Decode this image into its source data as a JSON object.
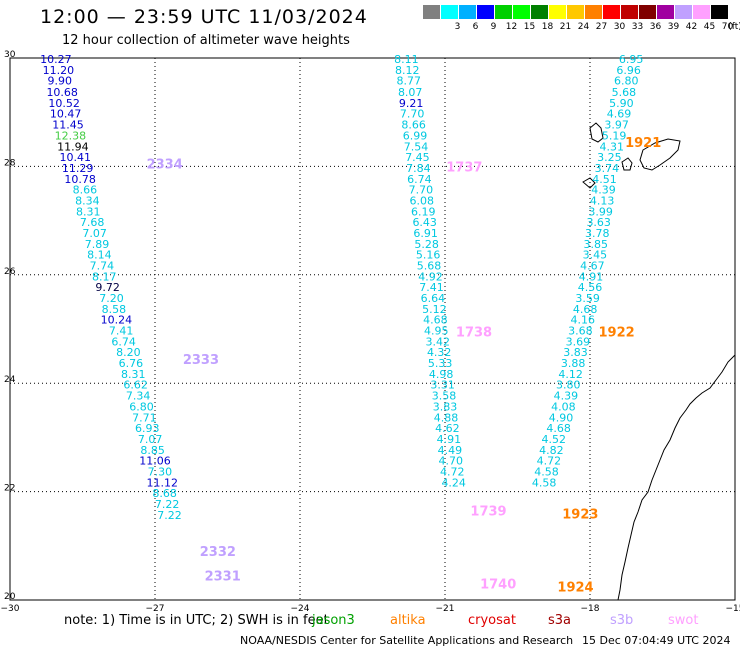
{
  "header": {
    "title": "12:00 — 23:59 UTC 11/03/2024",
    "subtitle": "12 hour collection of altimeter wave heights"
  },
  "colorbar": {
    "unit": "(ft)",
    "colors": [
      "#808080",
      "#00ffff",
      "#00b0ff",
      "#0000ff",
      "#00d000",
      "#00ff00",
      "#008000",
      "#ffff00",
      "#ffc800",
      "#ff8000",
      "#ff0000",
      "#c00000",
      "#800000",
      "#a000a0",
      "#c0a0ff",
      "#ffa0ff",
      "#000000"
    ],
    "labels": [
      "",
      "3",
      "6",
      "9",
      "12",
      "15",
      "18",
      "21",
      "24",
      "27",
      "30",
      "33",
      "36",
      "39",
      "42",
      "45",
      "70"
    ]
  },
  "axes": {
    "x_ticks": [
      "−30",
      "−27",
      "−24",
      "−21",
      "−18",
      "−15"
    ],
    "y_ticks": [
      "30",
      "28",
      "26",
      "24",
      "22",
      "20"
    ],
    "x_range": [
      -30,
      -15
    ],
    "y_range": [
      20,
      30
    ]
  },
  "legend": {
    "note": "note: 1) Time is in UTC; 2) SWH is in feet",
    "satellites": [
      {
        "name": "jason3",
        "color": "#00a000"
      },
      {
        "name": "altika",
        "color": "#ff8000"
      },
      {
        "name": "cryosat",
        "color": "#e00000"
      },
      {
        "name": "s3a",
        "color": "#a00000"
      },
      {
        "name": "s3b",
        "color": "#c0a0ff"
      },
      {
        "name": "swot",
        "color": "#ffa0ff"
      }
    ]
  },
  "footer": {
    "credit": "NOAA/NESDIS Center for Satellite Applications and Research",
    "timestamp": "15 Dec 07:04:49 UTC 2024"
  },
  "tracks": [
    {
      "pass": "2334",
      "pass_color": "#c0a0ff",
      "pass_pos": [
        -26.8,
        28.05
      ],
      "points": [
        [
          -29.05,
          30.0,
          "10.27",
          "#0000cc"
        ],
        [
          -29.0,
          29.8,
          "11.20",
          "#0000cc"
        ],
        [
          -28.97,
          29.6,
          "9.90",
          "#0000cc"
        ],
        [
          -28.92,
          29.39,
          "10.68",
          "#0000cc"
        ],
        [
          -28.88,
          29.19,
          "10.52",
          "#0000cc"
        ],
        [
          -28.85,
          28.99,
          "10.47",
          "#0000cc"
        ],
        [
          -28.8,
          28.79,
          "11.45",
          "#0000cc"
        ],
        [
          -28.75,
          28.59,
          "12.38",
          "#44cc44"
        ],
        [
          -28.7,
          28.39,
          "11.94",
          "#000000"
        ],
        [
          -28.65,
          28.19,
          "10.41",
          "#0000cc"
        ],
        [
          -28.6,
          27.99,
          "11.29",
          "#0000cc"
        ],
        [
          -28.55,
          27.79,
          "10.78",
          "#0000cc"
        ],
        [
          -28.45,
          27.59,
          "8.66",
          "#00c8e0"
        ],
        [
          -28.4,
          27.39,
          "8.34",
          "#00c8e0"
        ],
        [
          -28.38,
          27.19,
          "8.31",
          "#00c8e0"
        ],
        [
          -28.3,
          26.99,
          "7.68",
          "#00c8e0"
        ],
        [
          -28.25,
          26.79,
          "7.07",
          "#00c8e0"
        ],
        [
          -28.2,
          26.59,
          "7.89",
          "#00c8e0"
        ],
        [
          -28.15,
          26.39,
          "8.14",
          "#00c8e0"
        ],
        [
          -28.1,
          26.19,
          "7.74",
          "#00c8e0"
        ],
        [
          -28.05,
          25.99,
          "8.17",
          "#00c8e0"
        ],
        [
          -27.98,
          25.79,
          "9.72",
          "#000044"
        ]
      ]
    },
    {
      "pass": "2333",
      "pass_color": "#c0a0ff",
      "pass_pos": [
        -26.05,
        24.45
      ],
      "points": [
        [
          -27.9,
          25.59,
          "7.20",
          "#00c8e0"
        ],
        [
          -27.85,
          25.39,
          "8.58",
          "#00c8e0"
        ],
        [
          -27.8,
          25.19,
          "10.24",
          "#0000cc"
        ],
        [
          -27.7,
          24.99,
          "7.41",
          "#00c8e0"
        ],
        [
          -27.65,
          24.79,
          "6.74",
          "#00c8e0"
        ],
        [
          -27.55,
          24.59,
          "8.20",
          "#00c8e0"
        ],
        [
          -27.5,
          24.39,
          "6.76",
          "#00c8e0"
        ],
        [
          -27.45,
          24.19,
          "8.31",
          "#00c8e0"
        ],
        [
          -27.4,
          23.99,
          "6.62",
          "#00c8e0"
        ],
        [
          -27.35,
          23.79,
          "7.34",
          "#00c8e0"
        ],
        [
          -27.28,
          23.59,
          "6.80",
          "#00c8e0"
        ],
        [
          -27.22,
          23.39,
          "7.71",
          "#00c8e0"
        ],
        [
          -27.16,
          23.19,
          "6.93",
          "#00c8e0"
        ],
        [
          -27.1,
          22.99,
          "7.07",
          "#00c8e0"
        ],
        [
          -27.05,
          22.79,
          "8.85",
          "#00c8e0"
        ],
        [
          -27.0,
          22.59,
          "11.06",
          "#0000cc"
        ]
      ]
    },
    {
      "pass": "2332",
      "pass_color": "#c0a0ff",
      "pass_pos": [
        -25.7,
        20.9
      ],
      "points": [
        [
          -26.9,
          22.39,
          "7.30",
          "#00c8e0"
        ],
        [
          -26.85,
          22.19,
          "11.12",
          "#0000cc"
        ],
        [
          -26.8,
          21.99,
          "8.68",
          "#00c8e0"
        ],
        [
          -26.75,
          21.79,
          "7.22",
          "#00c8e0"
        ],
        [
          -26.7,
          21.59,
          "7.22",
          "#00c8e0"
        ]
      ]
    },
    {
      "pass": "2331",
      "pass_color": "#c0a0ff",
      "pass_pos": [
        -25.6,
        20.45
      ],
      "points": []
    },
    {
      "pass": "1737",
      "pass_color": "#ffa0ff",
      "pass_pos": [
        -20.6,
        28.0
      ],
      "points": [
        [
          -21.8,
          30.0,
          "8.11",
          "#00c8e0"
        ],
        [
          -21.78,
          29.8,
          "8.12",
          "#00c8e0"
        ],
        [
          -21.75,
          29.6,
          "8.77",
          "#00c8e0"
        ],
        [
          -21.72,
          29.39,
          "8.07",
          "#00c8e0"
        ],
        [
          -21.7,
          29.19,
          "9.21",
          "#0000cc"
        ],
        [
          -21.68,
          28.99,
          "7.70",
          "#00c8e0"
        ],
        [
          -21.65,
          28.79,
          "8.66",
          "#00c8e0"
        ],
        [
          -21.62,
          28.59,
          "6.99",
          "#00c8e0"
        ],
        [
          -21.6,
          28.39,
          "7.54",
          "#00c8e0"
        ],
        [
          -21.57,
          28.19,
          "7.45",
          "#00c8e0"
        ],
        [
          -21.55,
          27.99,
          "7.84",
          "#00c8e0"
        ],
        [
          -21.53,
          27.79,
          "6.74",
          "#00c8e0"
        ],
        [
          -21.5,
          27.59,
          "7.70",
          "#00c8e0"
        ],
        [
          -21.48,
          27.39,
          "6.08",
          "#00c8e0"
        ],
        [
          -21.45,
          27.19,
          "6.19",
          "#00c8e0"
        ],
        [
          -21.42,
          26.99,
          "6.43",
          "#00c8e0"
        ]
      ]
    },
    {
      "pass": "1738",
      "pass_color": "#ffa0ff",
      "pass_pos": [
        -20.4,
        24.95
      ],
      "points": [
        [
          -21.4,
          26.79,
          "6.91",
          "#00c8e0"
        ],
        [
          -21.38,
          26.59,
          "5.28",
          "#00c8e0"
        ],
        [
          -21.35,
          26.39,
          "5.16",
          "#00c8e0"
        ],
        [
          -21.33,
          26.19,
          "5.68",
          "#00c8e0"
        ],
        [
          -21.3,
          25.99,
          "4.92",
          "#00c8e0"
        ],
        [
          -21.28,
          25.79,
          "7.41",
          "#00c8e0"
        ],
        [
          -21.25,
          25.59,
          "6.64",
          "#00c8e0"
        ],
        [
          -21.22,
          25.39,
          "5.12",
          "#00c8e0"
        ],
        [
          -21.2,
          25.19,
          "4.68",
          "#00c8e0"
        ],
        [
          -21.18,
          24.99,
          "4.95",
          "#00c8e0"
        ],
        [
          -21.15,
          24.79,
          "3.42",
          "#00c8e0"
        ],
        [
          -21.12,
          24.59,
          "4.32",
          "#00c8e0"
        ],
        [
          -21.1,
          24.39,
          "5.33",
          "#00c8e0"
        ],
        [
          -21.08,
          24.19,
          "4.98",
          "#00c8e0"
        ],
        [
          -21.05,
          23.99,
          "3.31",
          "#00c8e0"
        ],
        [
          -21.02,
          23.79,
          "3.58",
          "#00c8e0"
        ]
      ]
    },
    {
      "pass": "1739",
      "pass_color": "#ffa0ff",
      "pass_pos": [
        -20.1,
        21.65
      ],
      "points": [
        [
          -21.0,
          23.59,
          "3.83",
          "#00c8e0"
        ],
        [
          -20.98,
          23.39,
          "4.88",
          "#00c8e0"
        ],
        [
          -20.95,
          23.19,
          "4.62",
          "#00c8e0"
        ],
        [
          -20.92,
          22.99,
          "4.91",
          "#00c8e0"
        ],
        [
          -20.9,
          22.79,
          "4.49",
          "#00c8e0"
        ],
        [
          -20.88,
          22.59,
          "4.70",
          "#00c8e0"
        ],
        [
          -20.85,
          22.39,
          "4.72",
          "#00c8e0"
        ],
        [
          -20.82,
          22.19,
          "4.24",
          "#00c8e0"
        ]
      ]
    },
    {
      "pass": "1740",
      "pass_color": "#ffa0ff",
      "pass_pos": [
        -19.9,
        20.3
      ],
      "points": []
    },
    {
      "pass": "1921",
      "pass_color": "#ff8000",
      "pass_pos": [
        -16.9,
        28.45
      ],
      "points": [
        [
          -17.15,
          30.0,
          "6.95",
          "#00c8e0"
        ],
        [
          -17.2,
          29.8,
          "6.96",
          "#00c8e0"
        ],
        [
          -17.25,
          29.6,
          "6.80",
          "#00c8e0"
        ],
        [
          -17.3,
          29.39,
          "5.68",
          "#00c8e0"
        ],
        [
          -17.35,
          29.19,
          "5.90",
          "#00c8e0"
        ],
        [
          -17.4,
          28.99,
          "4.69",
          "#00c8e0"
        ],
        [
          -17.45,
          28.79,
          "3.97",
          "#00c8e0"
        ],
        [
          -17.5,
          28.59,
          "5.19",
          "#00c8e0"
        ],
        [
          -17.55,
          28.39,
          "4.31",
          "#00c8e0"
        ],
        [
          -17.6,
          28.19,
          "3.25",
          "#00c8e0"
        ],
        [
          -17.65,
          27.99,
          "3.74",
          "#00c8e0"
        ],
        [
          -17.7,
          27.79,
          "4.51",
          "#00c8e0"
        ],
        [
          -17.72,
          27.59,
          "4.39",
          "#00c8e0"
        ],
        [
          -17.75,
          27.39,
          "4.13",
          "#00c8e0"
        ],
        [
          -17.78,
          27.19,
          "3.99",
          "#00c8e0"
        ],
        [
          -17.82,
          26.99,
          "3.63",
          "#00c8e0"
        ]
      ]
    },
    {
      "pass": "1922",
      "pass_color": "#ff8000",
      "pass_pos": [
        -17.45,
        24.95
      ],
      "points": [
        [
          -17.85,
          26.79,
          "3.78",
          "#00c8e0"
        ],
        [
          -17.88,
          26.59,
          "3.85",
          "#00c8e0"
        ],
        [
          -17.9,
          26.39,
          "3.45",
          "#00c8e0"
        ],
        [
          -17.95,
          26.19,
          "4.67",
          "#00c8e0"
        ],
        [
          -17.98,
          25.99,
          "4.91",
          "#00c8e0"
        ],
        [
          -18.0,
          25.79,
          "4.56",
          "#00c8e0"
        ],
        [
          -18.05,
          25.59,
          "3.59",
          "#00c8e0"
        ],
        [
          -18.1,
          25.39,
          "4.68",
          "#00c8e0"
        ],
        [
          -18.15,
          25.19,
          "4.16",
          "#00c8e0"
        ],
        [
          -18.2,
          24.99,
          "3.68",
          "#00c8e0"
        ],
        [
          -18.25,
          24.79,
          "3.69",
          "#00c8e0"
        ],
        [
          -18.3,
          24.59,
          "3.83",
          "#00c8e0"
        ],
        [
          -18.35,
          24.39,
          "3.88",
          "#00c8e0"
        ],
        [
          -18.4,
          24.19,
          "4.12",
          "#00c8e0"
        ],
        [
          -18.45,
          23.99,
          "3.80",
          "#00c8e0"
        ],
        [
          -18.5,
          23.79,
          "4.39",
          "#00c8e0"
        ]
      ]
    },
    {
      "pass": "1923",
      "pass_color": "#ff8000",
      "pass_pos": [
        -18.2,
        21.6
      ],
      "points": [
        [
          -18.55,
          23.59,
          "4.08",
          "#00c8e0"
        ],
        [
          -18.6,
          23.39,
          "4.90",
          "#00c8e0"
        ],
        [
          -18.65,
          23.19,
          "4.68",
          "#00c8e0"
        ]
      ]
    },
    {
      "pass": "1924",
      "pass_color": "#ff8000",
      "pass_pos": [
        -18.3,
        20.25
      ],
      "points": [
        [
          -18.75,
          22.99,
          "4.52",
          "#00c8e0"
        ],
        [
          -18.8,
          22.79,
          "4.82",
          "#00c8e0"
        ],
        [
          -18.85,
          22.59,
          "4.72",
          "#00c8e0"
        ],
        [
          -18.9,
          22.39,
          "4.58",
          "#00c8e0"
        ],
        [
          -18.95,
          22.19,
          "4.58",
          "#00c8e0"
        ]
      ]
    }
  ]
}
